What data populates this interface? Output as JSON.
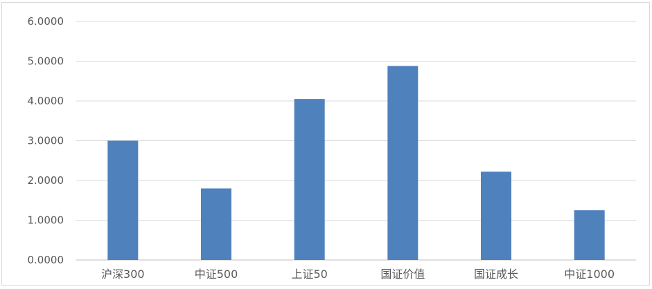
{
  "chart_data": {
    "type": "bar",
    "title": "",
    "xlabel": "",
    "ylabel": "",
    "categories": [
      "沪深300",
      "中证500",
      "上证50",
      "国证价值",
      "国证成长",
      "中证1000"
    ],
    "values": [
      3.0,
      1.8,
      4.05,
      4.88,
      2.22,
      1.25
    ],
    "ylim": [
      0,
      6
    ],
    "yticks": [
      "0.0000",
      "1.0000",
      "2.0000",
      "3.0000",
      "4.0000",
      "5.0000",
      "6.0000"
    ],
    "bar_color": "#4f81bd",
    "grid": true,
    "legend": "none"
  }
}
